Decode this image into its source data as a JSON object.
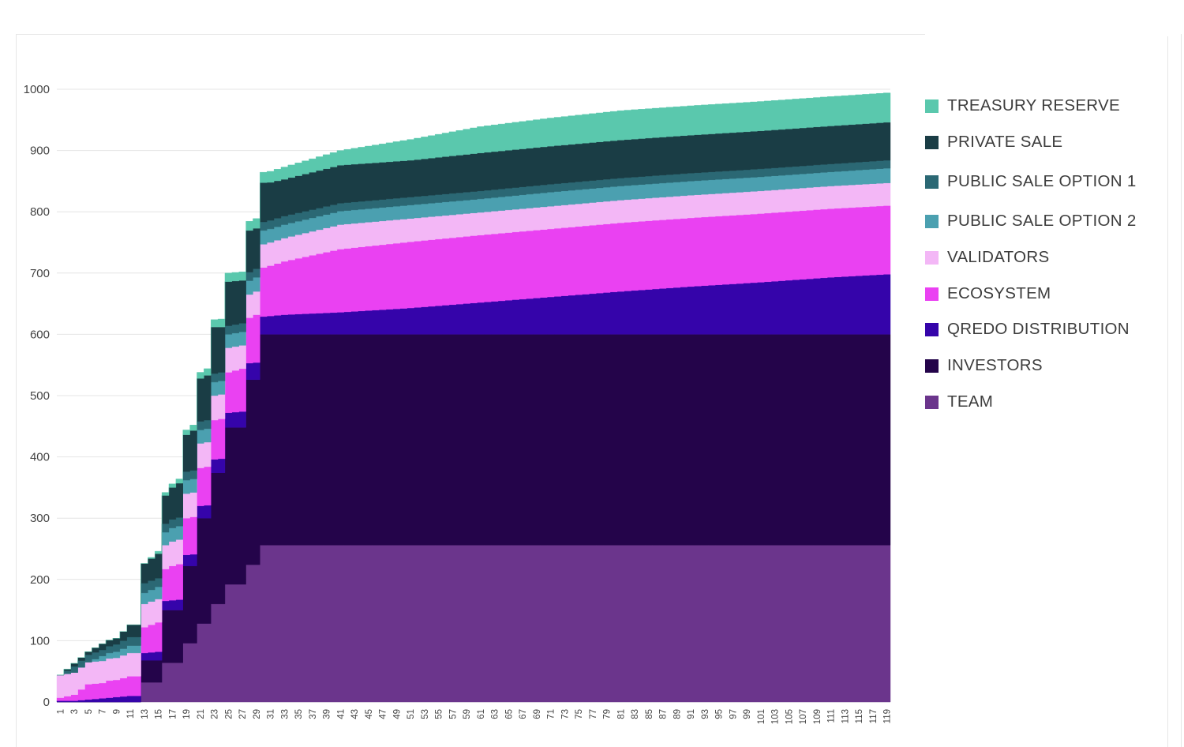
{
  "chart_data": {
    "type": "area",
    "stacked": true,
    "step": true,
    "ylim": [
      0,
      1000
    ],
    "yticks": [
      0,
      100,
      200,
      300,
      400,
      500,
      600,
      700,
      800,
      900,
      1000
    ],
    "x_start": 1,
    "x_end": 119,
    "x_tick_step": 2,
    "grid": "horizontal",
    "legend_position": "right",
    "series_note": "values per month, stacked from bottom (TEAM) to top (TREASURY RESERVE)",
    "series": [
      {
        "name": "TEAM",
        "color": "#6b358c",
        "anchors": [
          [
            1,
            0
          ],
          [
            12,
            0
          ],
          [
            13,
            32
          ],
          [
            15,
            32
          ],
          [
            16,
            64
          ],
          [
            18,
            64
          ],
          [
            19,
            96
          ],
          [
            20,
            96
          ],
          [
            21,
            128
          ],
          [
            22,
            128
          ],
          [
            23,
            160
          ],
          [
            24,
            160
          ],
          [
            25,
            192
          ],
          [
            27,
            192
          ],
          [
            28,
            224
          ],
          [
            29,
            224
          ],
          [
            30,
            256
          ],
          [
            119,
            256
          ]
        ]
      },
      {
        "name": "INVESTORS",
        "color": "#24044a",
        "anchors": [
          [
            1,
            0
          ],
          [
            12,
            0
          ],
          [
            13,
            36
          ],
          [
            15,
            36
          ],
          [
            16,
            86
          ],
          [
            18,
            86
          ],
          [
            19,
            126
          ],
          [
            20,
            126
          ],
          [
            21,
            172
          ],
          [
            22,
            172
          ],
          [
            23,
            214
          ],
          [
            24,
            214
          ],
          [
            25,
            256
          ],
          [
            27,
            256
          ],
          [
            28,
            302
          ],
          [
            29,
            302
          ],
          [
            30,
            344
          ],
          [
            119,
            344
          ]
        ]
      },
      {
        "name": "QREDO DISTRIBUTION",
        "color": "#3504aa",
        "anchors": [
          [
            1,
            2
          ],
          [
            3,
            2
          ],
          [
            5,
            4
          ],
          [
            7,
            6
          ],
          [
            9,
            8
          ],
          [
            11,
            10
          ],
          [
            12,
            10
          ],
          [
            13,
            12
          ],
          [
            15,
            14
          ],
          [
            17,
            16
          ],
          [
            19,
            18
          ],
          [
            21,
            20
          ],
          [
            23,
            22
          ],
          [
            25,
            24
          ],
          [
            27,
            26
          ],
          [
            29,
            28
          ],
          [
            31,
            30
          ],
          [
            33,
            32
          ],
          [
            41,
            36
          ],
          [
            51,
            43
          ],
          [
            61,
            52
          ],
          [
            71,
            61
          ],
          [
            81,
            70
          ],
          [
            91,
            78
          ],
          [
            101,
            85
          ],
          [
            111,
            93
          ],
          [
            119,
            98
          ]
        ]
      },
      {
        "name": "ECOSYSTEM",
        "color": "#ea41f2",
        "anchors": [
          [
            1,
            5
          ],
          [
            3,
            10
          ],
          [
            5,
            25
          ],
          [
            7,
            25
          ],
          [
            8,
            28
          ],
          [
            9,
            28
          ],
          [
            11,
            32
          ],
          [
            12,
            32
          ],
          [
            13,
            42
          ],
          [
            15,
            48
          ],
          [
            17,
            56
          ],
          [
            19,
            60
          ],
          [
            21,
            62
          ],
          [
            23,
            64
          ],
          [
            25,
            66
          ],
          [
            27,
            70
          ],
          [
            29,
            78
          ],
          [
            31,
            82
          ],
          [
            33,
            87
          ],
          [
            41,
            103
          ],
          [
            51,
            108
          ],
          [
            61,
            110
          ],
          [
            71,
            111
          ],
          [
            81,
            112
          ],
          [
            91,
            112
          ],
          [
            101,
            112
          ],
          [
            111,
            112
          ],
          [
            119,
            112
          ]
        ]
      },
      {
        "name": "VALIDATORS",
        "color": "#f3b7f6",
        "anchors": [
          [
            1,
            37
          ],
          [
            3,
            36
          ],
          [
            5,
            36
          ],
          [
            7,
            36
          ],
          [
            9,
            36
          ],
          [
            11,
            38
          ],
          [
            12,
            38
          ],
          [
            13,
            38
          ],
          [
            15,
            38
          ],
          [
            17,
            40
          ],
          [
            19,
            40
          ],
          [
            21,
            40
          ],
          [
            23,
            40
          ],
          [
            25,
            40
          ],
          [
            27,
            38
          ],
          [
            29,
            38
          ],
          [
            31,
            38
          ],
          [
            33,
            38
          ],
          [
            41,
            40
          ],
          [
            51,
            38
          ],
          [
            61,
            37
          ],
          [
            71,
            37
          ],
          [
            81,
            37
          ],
          [
            91,
            37
          ],
          [
            101,
            37
          ],
          [
            111,
            37
          ],
          [
            119,
            37
          ]
        ]
      },
      {
        "name": "PUBLIC SALE OPTION 2",
        "color": "#4ba0b0",
        "anchors": [
          [
            1,
            0
          ],
          [
            3,
            0
          ],
          [
            5,
            0
          ],
          [
            7,
            8
          ],
          [
            9,
            10
          ],
          [
            11,
            12
          ],
          [
            12,
            12
          ],
          [
            13,
            18
          ],
          [
            15,
            20
          ],
          [
            17,
            22
          ],
          [
            19,
            22
          ],
          [
            21,
            22
          ],
          [
            23,
            22
          ],
          [
            25,
            22
          ],
          [
            27,
            22
          ],
          [
            29,
            23
          ],
          [
            31,
            22
          ],
          [
            33,
            22
          ],
          [
            41,
            22
          ],
          [
            51,
            22
          ],
          [
            61,
            22
          ],
          [
            71,
            23
          ],
          [
            81,
            23
          ],
          [
            91,
            23
          ],
          [
            101,
            23
          ],
          [
            111,
            23
          ],
          [
            119,
            24
          ]
        ]
      },
      {
        "name": "PUBLIC SALE OPTION 1",
        "color": "#2b6874",
        "anchors": [
          [
            1,
            0
          ],
          [
            3,
            10
          ],
          [
            5,
            12
          ],
          [
            7,
            10
          ],
          [
            9,
            12
          ],
          [
            11,
            14
          ],
          [
            12,
            14
          ],
          [
            13,
            16
          ],
          [
            15,
            14
          ],
          [
            17,
            14
          ],
          [
            19,
            14
          ],
          [
            21,
            14
          ],
          [
            23,
            14
          ],
          [
            25,
            14
          ],
          [
            27,
            14
          ],
          [
            29,
            14
          ],
          [
            31,
            14
          ],
          [
            33,
            14
          ],
          [
            41,
            13
          ],
          [
            51,
            13
          ],
          [
            61,
            13
          ],
          [
            71,
            13
          ],
          [
            81,
            13
          ],
          [
            91,
            13
          ],
          [
            101,
            13
          ],
          [
            111,
            13
          ],
          [
            119,
            13
          ]
        ]
      },
      {
        "name": "PRIVATE SALE",
        "color": "#1a3d45",
        "anchors": [
          [
            1,
            0
          ],
          [
            3,
            5
          ],
          [
            5,
            5
          ],
          [
            7,
            10
          ],
          [
            9,
            10
          ],
          [
            11,
            20
          ],
          [
            12,
            20
          ],
          [
            13,
            32
          ],
          [
            15,
            40
          ],
          [
            17,
            52
          ],
          [
            19,
            60
          ],
          [
            21,
            70
          ],
          [
            23,
            76
          ],
          [
            25,
            72
          ],
          [
            27,
            70
          ],
          [
            29,
            66
          ],
          [
            31,
            62
          ],
          [
            33,
            60
          ],
          [
            41,
            62
          ],
          [
            51,
            60
          ],
          [
            61,
            62
          ],
          [
            71,
            62
          ],
          [
            81,
            62
          ],
          [
            91,
            62
          ],
          [
            101,
            62
          ],
          [
            111,
            62
          ],
          [
            119,
            62
          ]
        ]
      },
      {
        "name": "TREASURY RESERVE",
        "color": "#5ac8ad",
        "anchors": [
          [
            1,
            0
          ],
          [
            3,
            0
          ],
          [
            5,
            0
          ],
          [
            7,
            0
          ],
          [
            9,
            0
          ],
          [
            11,
            0
          ],
          [
            12,
            0
          ],
          [
            13,
            0
          ],
          [
            15,
            4
          ],
          [
            17,
            6
          ],
          [
            19,
            8
          ],
          [
            21,
            10
          ],
          [
            23,
            12
          ],
          [
            25,
            14
          ],
          [
            27,
            14
          ],
          [
            29,
            16
          ],
          [
            31,
            18
          ],
          [
            33,
            20
          ],
          [
            41,
            24
          ],
          [
            51,
            34
          ],
          [
            61,
            43
          ],
          [
            71,
            46
          ],
          [
            81,
            48
          ],
          [
            91,
            48
          ],
          [
            101,
            48
          ],
          [
            111,
            48
          ],
          [
            119,
            48
          ]
        ]
      }
    ]
  }
}
